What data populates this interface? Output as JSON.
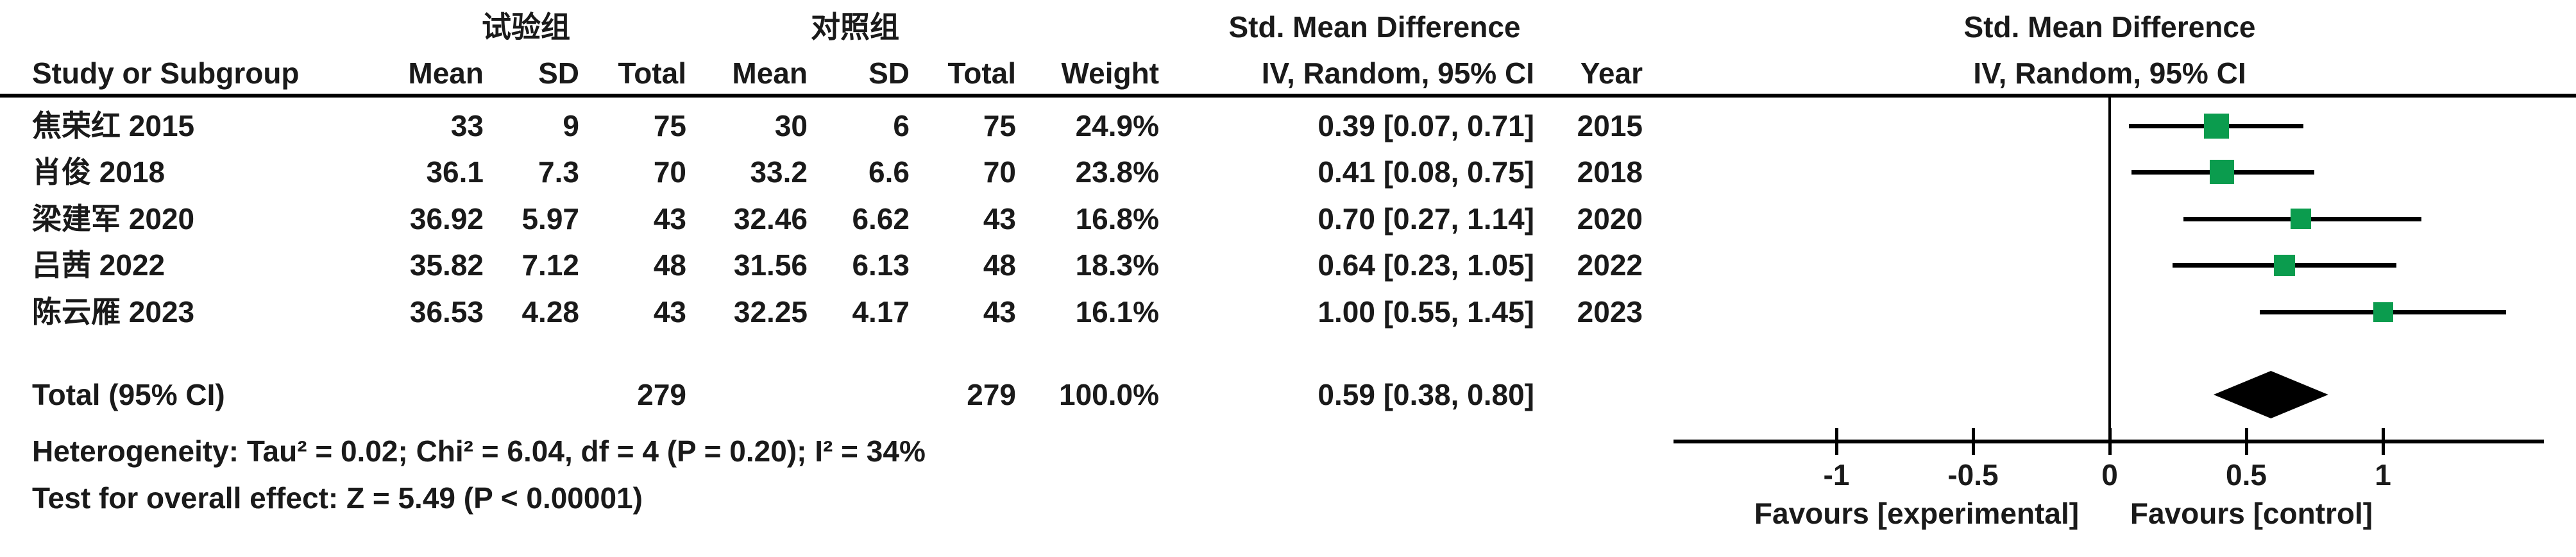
{
  "header": {
    "group_experimental": "试验组",
    "group_control": "对照组",
    "study_col": "Study or Subgroup",
    "mean_col": "Mean",
    "sd_col": "SD",
    "total_col": "Total",
    "weight_col": "Weight",
    "ci_col": "IV, Random, 95% CI",
    "year_col": "Year",
    "smd_title": "Std. Mean Difference",
    "plot_title": "Std. Mean Difference",
    "plot_subtitle": "IV, Random, 95% CI"
  },
  "total_row": {
    "label": "Total (95% CI)",
    "total_experimental": "279",
    "total_control": "279",
    "weight": "100.0%",
    "ci_text": "0.59 [0.38, 0.80]"
  },
  "footnotes": {
    "heterogeneity": "Heterogeneity: Tau² = 0.02; Chi² = 6.04, df = 4 (P = 0.20); I² = 34%",
    "overall_effect": "Test for overall effect: Z = 5.49 (P < 0.00001)"
  },
  "axis": {
    "favours_left": "Favours [experimental]",
    "favours_right": "Favours [control]"
  },
  "colors": {
    "marker": "#0B9C4E",
    "diamond": "#000000",
    "text": "#1A1A1A",
    "line": "#000000"
  },
  "chart_data": {
    "type": "forest",
    "effect_measure": "Std. Mean Difference",
    "model": "IV, Random, 95% CI",
    "studies": [
      {
        "name": "焦荣红 2015",
        "mean_exp": "33",
        "sd_exp": "9",
        "total_exp": "75",
        "mean_ctrl": "30",
        "sd_ctrl": "6",
        "total_ctrl": "75",
        "weight": "24.9%",
        "weight_pct": 24.9,
        "smd": 0.39,
        "ci_low": 0.07,
        "ci_high": 0.71,
        "ci_text": "0.39 [0.07, 0.71]",
        "year": "2015"
      },
      {
        "name": "肖俊 2018",
        "mean_exp": "36.1",
        "sd_exp": "7.3",
        "total_exp": "70",
        "mean_ctrl": "33.2",
        "sd_ctrl": "6.6",
        "total_ctrl": "70",
        "weight": "23.8%",
        "weight_pct": 23.8,
        "smd": 0.41,
        "ci_low": 0.08,
        "ci_high": 0.75,
        "ci_text": "0.41 [0.08, 0.75]",
        "year": "2018"
      },
      {
        "name": "梁建军 2020",
        "mean_exp": "36.92",
        "sd_exp": "5.97",
        "total_exp": "43",
        "mean_ctrl": "32.46",
        "sd_ctrl": "6.62",
        "total_ctrl": "43",
        "weight": "16.8%",
        "weight_pct": 16.8,
        "smd": 0.7,
        "ci_low": 0.27,
        "ci_high": 1.14,
        "ci_text": "0.70 [0.27, 1.14]",
        "year": "2020"
      },
      {
        "name": "吕茜 2022",
        "mean_exp": "35.82",
        "sd_exp": "7.12",
        "total_exp": "48",
        "mean_ctrl": "31.56",
        "sd_ctrl": "6.13",
        "total_ctrl": "48",
        "weight": "18.3%",
        "weight_pct": 18.3,
        "smd": 0.64,
        "ci_low": 0.23,
        "ci_high": 1.05,
        "ci_text": "0.64 [0.23, 1.05]",
        "year": "2022"
      },
      {
        "name": "陈云雁 2023",
        "mean_exp": "36.53",
        "sd_exp": "4.28",
        "total_exp": "43",
        "mean_ctrl": "32.25",
        "sd_ctrl": "4.17",
        "total_ctrl": "43",
        "weight": "16.1%",
        "weight_pct": 16.1,
        "smd": 1.0,
        "ci_low": 0.55,
        "ci_high": 1.45,
        "ci_text": "1.00 [0.55, 1.45]",
        "year": "2023"
      }
    ],
    "total": {
      "smd": 0.59,
      "ci_low": 0.38,
      "ci_high": 0.8,
      "total_exp": 279,
      "total_ctrl": 279,
      "weight_pct": 100.0
    },
    "heterogeneity": {
      "tau2": 0.02,
      "chi2": 6.04,
      "df": 4,
      "p": 0.2,
      "i2_pct": 34
    },
    "overall_effect": {
      "z": 5.49,
      "p": "< 0.00001"
    },
    "x_axis": {
      "tick_values": [
        -1,
        -0.5,
        0,
        0.5,
        1
      ],
      "tick_labels": [
        "-1",
        "-0.5",
        "0",
        "0.5",
        "1"
      ],
      "range": [
        -1.6,
        1.6
      ],
      "favours_left": "Favours [experimental]",
      "favours_right": "Favours [control]"
    }
  }
}
